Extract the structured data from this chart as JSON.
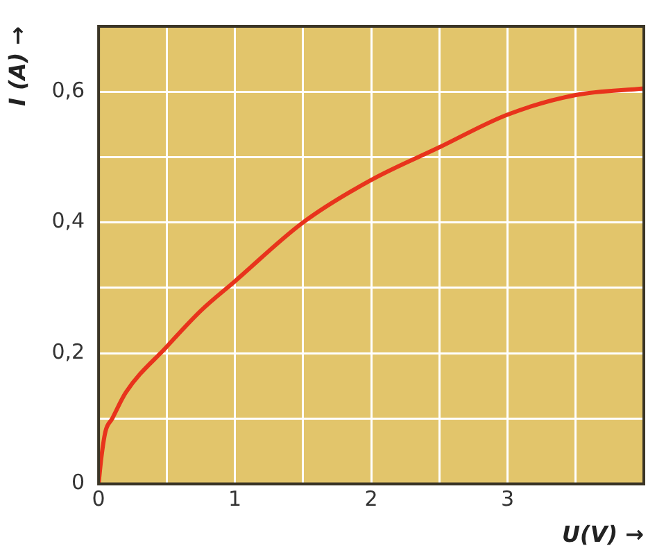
{
  "chart_data": {
    "type": "line",
    "xlabel": "U(V) →",
    "ylabel": "I (A) →",
    "x": [
      0,
      0.02,
      0.05,
      0.1,
      0.2,
      0.5,
      0.75,
      1,
      1.5,
      2,
      2.5,
      3,
      3.5,
      4
    ],
    "series": [
      {
        "color": "#e8331c",
        "values": [
          0,
          0.04,
          0.08,
          0.1,
          0.14,
          0.21,
          0.265,
          0.31,
          0.4,
          0.465,
          0.515,
          0.565,
          0.595,
          0.605
        ]
      }
    ],
    "xlim": [
      0,
      4
    ],
    "ylim": [
      0,
      0.7
    ],
    "xticks": [
      0,
      {
        "value": 0.5,
        "label": null
      },
      1,
      {
        "value": 1.5,
        "label": null
      },
      2,
      {
        "value": 2.5,
        "label": null
      },
      3,
      {
        "value": 3.5,
        "label": null
      },
      {
        "value": 4,
        "label": null
      }
    ],
    "yticks": [
      0,
      {
        "value": 0.1,
        "label": null
      },
      {
        "value": 0.2,
        "label": "0,2"
      },
      {
        "value": 0.3,
        "label": null
      },
      {
        "value": 0.4,
        "label": "0,4"
      },
      {
        "value": 0.5,
        "label": null
      },
      {
        "value": 0.6,
        "label": "0,6"
      },
      {
        "value": 0.7,
        "label": null
      }
    ],
    "grid": true,
    "legend": false,
    "marker": "none",
    "line_style": "solid"
  }
}
